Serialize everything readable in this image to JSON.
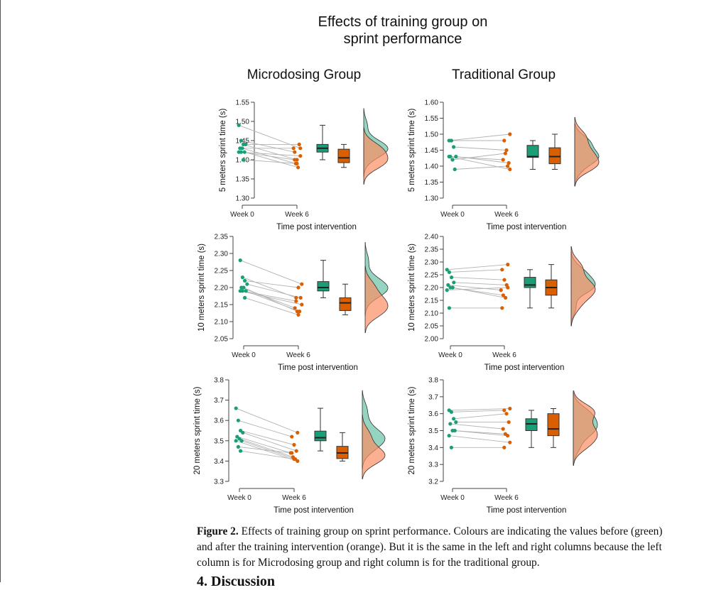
{
  "figure": {
    "title_line1": "Effects of training group on",
    "title_line2": "sprint performance",
    "column_titles": [
      "Microdosing Group",
      "Traditional Group"
    ],
    "colors": {
      "week0": "#1b9e77",
      "week6": "#d95f02",
      "density_week0": "#66c2a5",
      "density_week6": "#fc8d62",
      "line": "#b3b3b3"
    }
  },
  "chart_data": [
    {
      "type": "scatter",
      "group": "Microdosing Group",
      "title": "",
      "ylabel": "5 meters sprint time (s)",
      "xlabel": "Time post intervention",
      "categories": [
        "Week 0",
        "Week 6"
      ],
      "ylim": [
        1.3,
        1.55
      ],
      "yticks": [
        "1.30",
        "1.35",
        "1.40",
        "1.45",
        "1.50",
        "1.55"
      ],
      "series": [
        {
          "name": "Week 0",
          "values": [
            1.49,
            1.45,
            1.44,
            1.44,
            1.43,
            1.43,
            1.42,
            1.42,
            1.42,
            1.4
          ]
        },
        {
          "name": "Week 6",
          "values": [
            1.43,
            1.42,
            1.4,
            1.44,
            1.43,
            1.39,
            1.38,
            1.41,
            1.4,
            1.39
          ]
        }
      ]
    },
    {
      "type": "scatter",
      "group": "Traditional Group",
      "title": "",
      "ylabel": "5 meters sprint time (s)",
      "xlabel": "Time post intervention",
      "categories": [
        "Week 0",
        "Week 6"
      ],
      "ylim": [
        1.3,
        1.6
      ],
      "yticks": [
        "1.30",
        "1.35",
        "1.40",
        "1.45",
        "1.50",
        "1.55",
        "1.60"
      ],
      "series": [
        {
          "name": "Week 0",
          "values": [
            1.48,
            1.48,
            1.46,
            1.43,
            1.43,
            1.42,
            1.39,
            1.43
          ]
        },
        {
          "name": "Week 6",
          "values": [
            1.5,
            1.48,
            1.45,
            1.41,
            1.42,
            1.44,
            1.4,
            1.39
          ]
        }
      ]
    },
    {
      "type": "scatter",
      "group": "Microdosing Group",
      "title": "",
      "ylabel": "10 meters sprint time (s)",
      "xlabel": "Time post intervention",
      "categories": [
        "Week 0",
        "Week 6"
      ],
      "ylim": [
        2.05,
        2.35
      ],
      "yticks": [
        "2.05",
        "2.10",
        "2.15",
        "2.20",
        "2.25",
        "2.30",
        "2.35"
      ],
      "series": [
        {
          "name": "Week 0",
          "values": [
            2.28,
            2.23,
            2.22,
            2.21,
            2.2,
            2.2,
            2.19,
            2.19,
            2.19,
            2.17
          ]
        },
        {
          "name": "Week 6",
          "values": [
            2.21,
            2.17,
            2.2,
            2.17,
            2.14,
            2.13,
            2.13,
            2.15,
            2.16,
            2.12
          ]
        }
      ]
    },
    {
      "type": "scatter",
      "group": "Traditional Group",
      "title": "",
      "ylabel": "10 meters sprint time (s)",
      "xlabel": "Time post intervention",
      "categories": [
        "Week 0",
        "Week 6"
      ],
      "ylim": [
        2.0,
        2.4
      ],
      "yticks": [
        "2.00",
        "2.05",
        "2.10",
        "2.15",
        "2.20",
        "2.25",
        "2.30",
        "2.35",
        "2.40"
      ],
      "series": [
        {
          "name": "Week 0",
          "values": [
            2.27,
            2.26,
            2.24,
            2.22,
            2.21,
            2.2,
            2.2,
            2.19,
            2.12
          ]
        },
        {
          "name": "Week 6",
          "values": [
            2.29,
            2.27,
            2.23,
            2.21,
            2.19,
            2.17,
            2.16,
            2.2,
            2.12
          ]
        }
      ]
    },
    {
      "type": "scatter",
      "group": "Microdosing Group",
      "title": "",
      "ylabel": "20 meters sprint time (s)",
      "xlabel": "Time post intervention",
      "categories": [
        "Week 0",
        "Week 6"
      ],
      "ylim": [
        3.3,
        3.8
      ],
      "yticks": [
        "3.3",
        "3.4",
        "3.5",
        "3.6",
        "3.7",
        "3.8"
      ],
      "series": [
        {
          "name": "Week 0",
          "values": [
            3.66,
            3.6,
            3.55,
            3.54,
            3.52,
            3.51,
            3.5,
            3.5,
            3.47,
            3.45
          ]
        },
        {
          "name": "Week 6",
          "values": [
            3.54,
            3.52,
            3.48,
            3.45,
            3.44,
            3.42,
            3.41,
            3.4,
            3.44,
            3.41
          ]
        }
      ]
    },
    {
      "type": "scatter",
      "group": "Traditional Group",
      "title": "",
      "ylabel": "20 meters sprint time (s)",
      "xlabel": "Time post intervention",
      "categories": [
        "Week 0",
        "Week 6"
      ],
      "ylim": [
        3.2,
        3.8
      ],
      "yticks": [
        "3.2",
        "3.3",
        "3.4",
        "3.5",
        "3.6",
        "3.7",
        "3.8"
      ],
      "series": [
        {
          "name": "Week 0",
          "values": [
            3.62,
            3.61,
            3.57,
            3.55,
            3.54,
            3.5,
            3.5,
            3.47,
            3.4
          ]
        },
        {
          "name": "Week 6",
          "values": [
            3.63,
            3.62,
            3.6,
            3.55,
            3.51,
            3.48,
            3.47,
            3.43,
            3.4
          ]
        }
      ]
    }
  ],
  "caption": {
    "label": "Figure 2.",
    "text": " Effects of training group on sprint performance. Colours are indicating the values before (green) and after the training intervention (orange). But it is the same in the left and right columns because the left column is for Microdosing group and right column is for the traditional group."
  },
  "next_section": "4. Discussion"
}
